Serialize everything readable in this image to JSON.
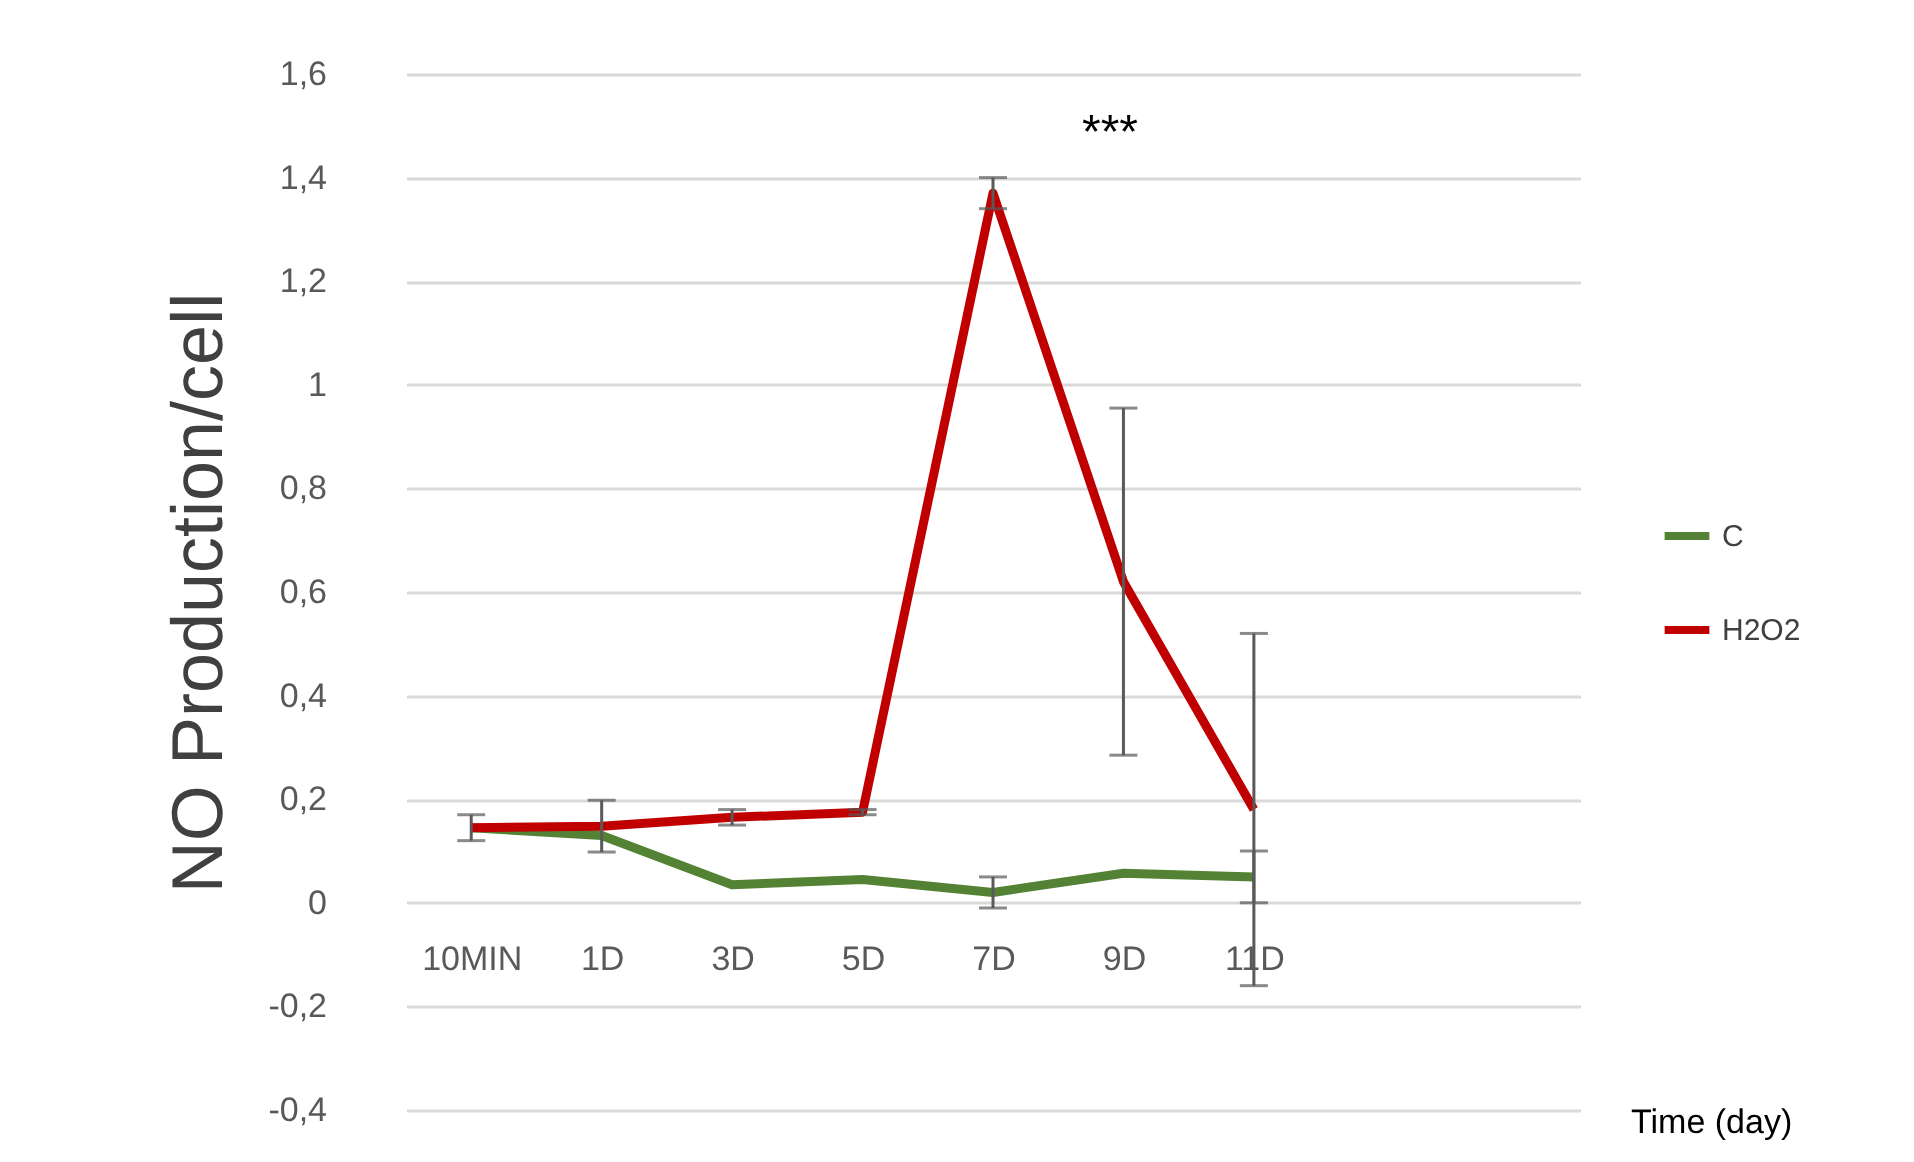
{
  "chart_data": {
    "type": "line",
    "xlabel": "Time (day)",
    "ylabel": "NO Production/cell",
    "categories": [
      "10MIN",
      "1D",
      "3D",
      "5D",
      "7D",
      "9D",
      "11D",
      null,
      null
    ],
    "series": [
      {
        "name": "C",
        "color": "#548235",
        "values": [
          0.145,
          0.13,
          0.035,
          0.045,
          0.02,
          0.057,
          0.05,
          null,
          null
        ],
        "errors": [
          null,
          null,
          null,
          null,
          0.03,
          null,
          0.05,
          null,
          null
        ]
      },
      {
        "name": "H2O2",
        "color": "#c00000",
        "values": [
          0.145,
          0.148,
          0.165,
          0.175,
          1.37,
          0.62,
          0.18,
          null,
          null
        ],
        "errors": [
          0.025,
          0.05,
          0.015,
          0.005,
          0.03,
          0.335,
          0.34,
          null,
          null
        ]
      }
    ],
    "ylim": [
      -0.4,
      1.6
    ],
    "yticks": [
      {
        "value": -0.4,
        "label": "-0,4"
      },
      {
        "value": -0.2,
        "label": "-0,2"
      },
      0,
      {
        "value": 0.2,
        "label": "0,2"
      },
      {
        "value": 0.4,
        "label": "0,4"
      },
      {
        "value": 0.6,
        "label": "0,6"
      },
      {
        "value": 0.8,
        "label": "0,8"
      },
      1,
      {
        "value": 1.2,
        "label": "1,2"
      },
      {
        "value": 1.4,
        "label": "1,4"
      },
      {
        "value": 1.6,
        "label": "1,6"
      }
    ],
    "annotations": [
      "***"
    ],
    "grid": "y",
    "legend": "right",
    "marker": "none",
    "line_style": "solid"
  }
}
